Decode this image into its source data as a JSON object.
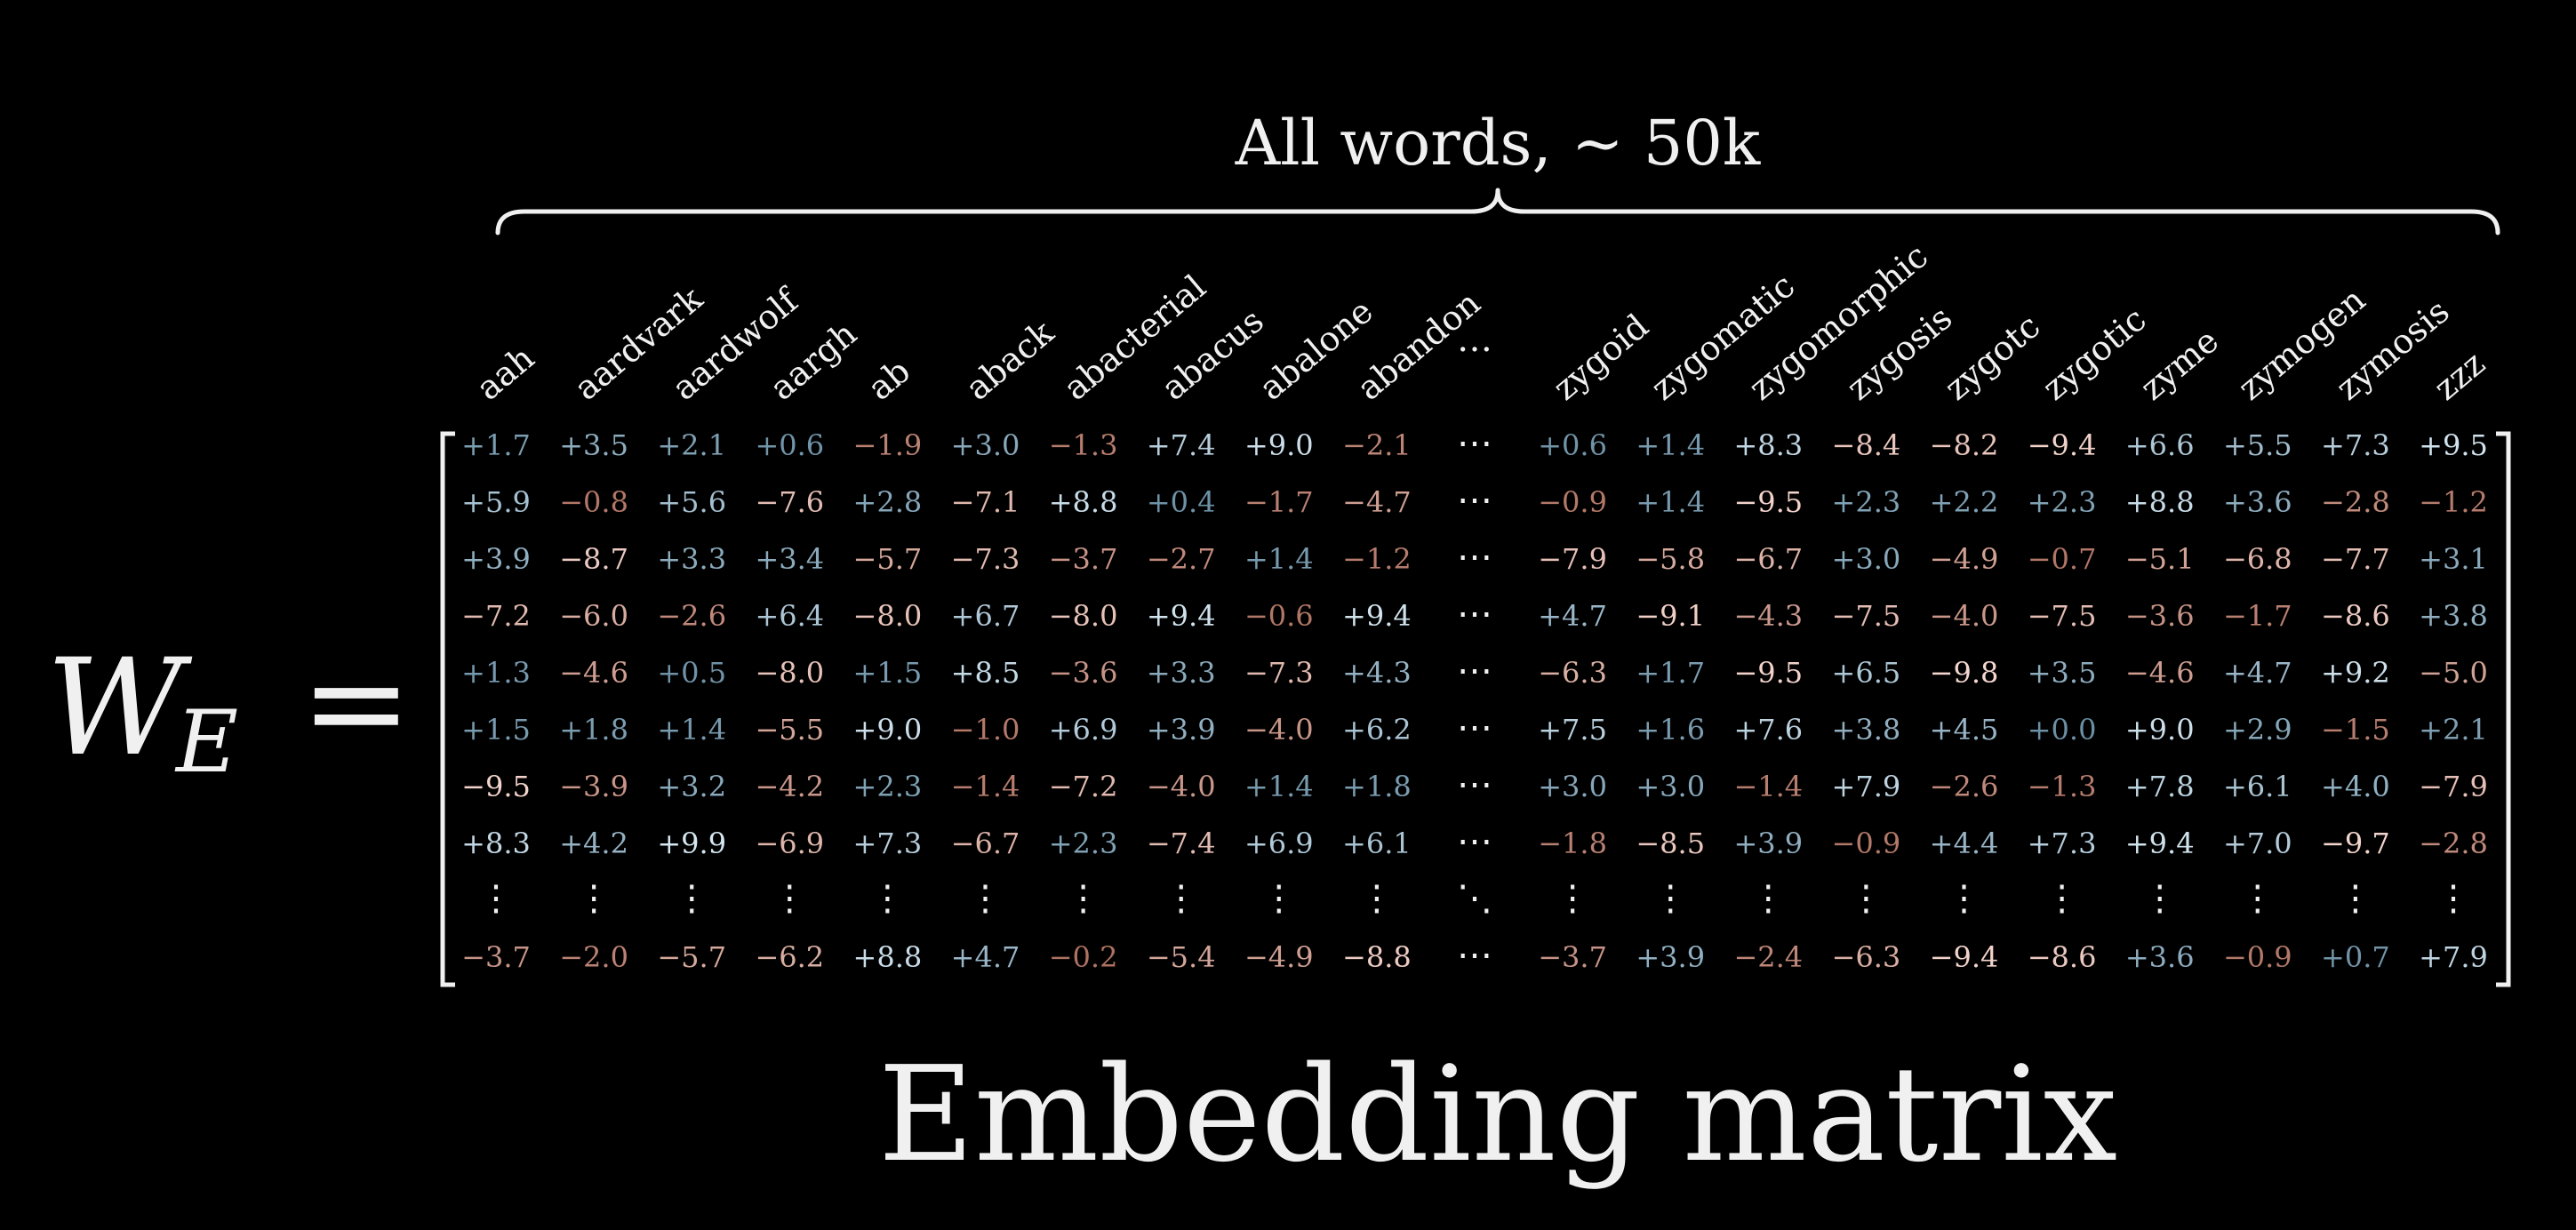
{
  "equation": {
    "symbol": "W",
    "subscript": "E",
    "equals": "="
  },
  "header": {
    "text": "All words,  ~ 50k"
  },
  "caption": {
    "text": "Embedding matrix"
  },
  "matrix": {
    "columns": [
      "aah",
      "aardvark",
      "aardwolf",
      "aargh",
      "ab",
      "aback",
      "abacterial",
      "abacus",
      "abalone",
      "abandon",
      "…",
      "zygoid",
      "zygomatic",
      "zygomorphic",
      "zygosis",
      "zygotc",
      "zygotic",
      "zyme",
      "zymogen",
      "zymosis",
      "zzz"
    ],
    "ellipsis_h": "⋯",
    "ellipsis_v": "⋮",
    "ellipsis_d": "⋱",
    "rows": [
      [
        "+1.7",
        "+3.5",
        "+2.1",
        "+0.6",
        "−1.9",
        "+3.0",
        "−1.3",
        "+7.4",
        "+9.0",
        "−2.1",
        "⋯",
        "+0.6",
        "+1.4",
        "+8.3",
        "−8.4",
        "−8.2",
        "−9.4",
        "+6.6",
        "+5.5",
        "+7.3",
        "+9.5"
      ],
      [
        "+5.9",
        "−0.8",
        "+5.6",
        "−7.6",
        "+2.8",
        "−7.1",
        "+8.8",
        "+0.4",
        "−1.7",
        "−4.7",
        "⋯",
        "−0.9",
        "+1.4",
        "−9.5",
        "+2.3",
        "+2.2",
        "+2.3",
        "+8.8",
        "+3.6",
        "−2.8",
        "−1.2"
      ],
      [
        "+3.9",
        "−8.7",
        "+3.3",
        "+3.4",
        "−5.7",
        "−7.3",
        "−3.7",
        "−2.7",
        "+1.4",
        "−1.2",
        "⋯",
        "−7.9",
        "−5.8",
        "−6.7",
        "+3.0",
        "−4.9",
        "−0.7",
        "−5.1",
        "−6.8",
        "−7.7",
        "+3.1"
      ],
      [
        "−7.2",
        "−6.0",
        "−2.6",
        "+6.4",
        "−8.0",
        "+6.7",
        "−8.0",
        "+9.4",
        "−0.6",
        "+9.4",
        "⋯",
        "+4.7",
        "−9.1",
        "−4.3",
        "−7.5",
        "−4.0",
        "−7.5",
        "−3.6",
        "−1.7",
        "−8.6",
        "+3.8"
      ],
      [
        "+1.3",
        "−4.6",
        "+0.5",
        "−8.0",
        "+1.5",
        "+8.5",
        "−3.6",
        "+3.3",
        "−7.3",
        "+4.3",
        "⋯",
        "−6.3",
        "+1.7",
        "−9.5",
        "+6.5",
        "−9.8",
        "+3.5",
        "−4.6",
        "+4.7",
        "+9.2",
        "−5.0"
      ],
      [
        "+1.5",
        "+1.8",
        "+1.4",
        "−5.5",
        "+9.0",
        "−1.0",
        "+6.9",
        "+3.9",
        "−4.0",
        "+6.2",
        "⋯",
        "+7.5",
        "+1.6",
        "+7.6",
        "+3.8",
        "+4.5",
        "+0.0",
        "+9.0",
        "+2.9",
        "−1.5",
        "+2.1"
      ],
      [
        "−9.5",
        "−3.9",
        "+3.2",
        "−4.2",
        "+2.3",
        "−1.4",
        "−7.2",
        "−4.0",
        "+1.4",
        "+1.8",
        "⋯",
        "+3.0",
        "+3.0",
        "−1.4",
        "+7.9",
        "−2.6",
        "−1.3",
        "+7.8",
        "+6.1",
        "+4.0",
        "−7.9"
      ],
      [
        "+8.3",
        "+4.2",
        "+9.9",
        "−6.9",
        "+7.3",
        "−6.7",
        "+2.3",
        "−7.4",
        "+6.9",
        "+6.1",
        "⋯",
        "−1.8",
        "−8.5",
        "+3.9",
        "−0.9",
        "+4.4",
        "+7.3",
        "+9.4",
        "+7.0",
        "−9.7",
        "−2.8"
      ],
      [
        "⋮",
        "⋮",
        "⋮",
        "⋮",
        "⋮",
        "⋮",
        "⋮",
        "⋮",
        "⋮",
        "⋮",
        "⋱",
        "⋮",
        "⋮",
        "⋮",
        "⋮",
        "⋮",
        "⋮",
        "⋮",
        "⋮",
        "⋮",
        "⋮"
      ],
      [
        "−3.7",
        "−2.0",
        "−5.7",
        "−6.2",
        "+8.8",
        "+4.7",
        "−0.2",
        "−5.4",
        "−4.9",
        "−8.8",
        "⋯",
        "−3.7",
        "+3.9",
        "−2.4",
        "−6.3",
        "−9.4",
        "−8.6",
        "+3.6",
        "−0.9",
        "+0.7",
        "+7.9"
      ]
    ]
  },
  "colors": {
    "background": "#000000",
    "text": "#f0f0f0",
    "positive": "#7ab3d4",
    "negative": "#e2836a",
    "neutral": "#ffffff"
  }
}
